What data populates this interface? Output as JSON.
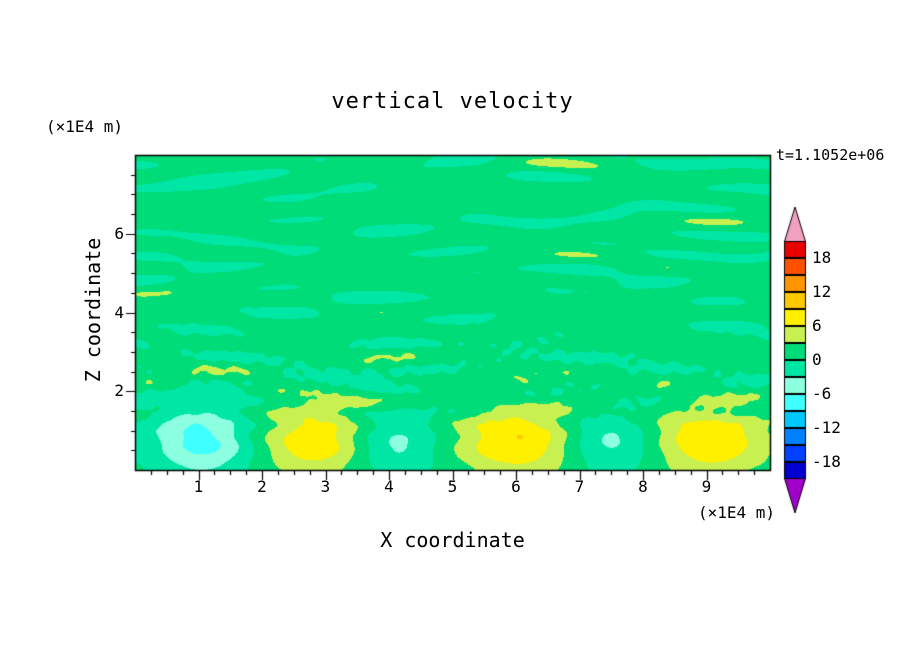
{
  "title": "vertical velocity",
  "timestamp": "t=1.1052e+06",
  "axes": {
    "x_label": "X coordinate",
    "x_unit": "(×1E4 m)",
    "y_label": "Z coordinate",
    "y_unit": "(×1E4 m)",
    "x_ticks": [
      1,
      2,
      3,
      4,
      5,
      6,
      7,
      8,
      9
    ],
    "y_ticks": [
      2,
      4,
      6
    ]
  },
  "colorbar": {
    "labels": [
      "18",
      "12",
      "6",
      "0",
      "-6",
      "-12",
      "-18"
    ]
  },
  "chart_data": {
    "type": "heatmap",
    "title": "vertical velocity",
    "xlabel": "X coordinate (×1E4 m)",
    "ylabel": "Z coordinate (×1E4 m)",
    "time_label": "t=1.1052e+06",
    "x_range": [
      0,
      10
    ],
    "z_range": [
      0,
      8
    ],
    "contour_interval": 3,
    "levels": [
      -21,
      -18,
      -15,
      -12,
      -9,
      -6,
      -3,
      0,
      3,
      6,
      9,
      12,
      15,
      18,
      21
    ],
    "palette_low_to_high": [
      "#A000C8",
      "#0000D2",
      "#0040FF",
      "#0082FF",
      "#00C8FF",
      "#40FFFF",
      "#8CFFE1",
      "#00E6A5",
      "#00DC78",
      "#C8F050",
      "#FFF000",
      "#FFC800",
      "#FF9600",
      "#FF5000",
      "#E80000",
      "#F2A0C0"
    ],
    "background": {
      "mean": 0.8,
      "fluctuation": 1.5
    },
    "cells": [
      {
        "x": 1.05,
        "amplitude": -8.2,
        "sx": 0.55,
        "sz": 0.6,
        "zc": 0.75
      },
      {
        "x": 2.85,
        "amplitude": 7.8,
        "sx": 0.62,
        "sz": 0.6,
        "zc": 0.75
      },
      {
        "x": 4.05,
        "amplitude": -5.2,
        "sx": 0.5,
        "sz": 0.55,
        "zc": 0.7
      },
      {
        "x": 6.0,
        "amplitude": 8.2,
        "sx": 0.66,
        "sz": 0.62,
        "zc": 0.75
      },
      {
        "x": 7.45,
        "amplitude": -4.8,
        "sx": 0.5,
        "sz": 0.55,
        "zc": 0.7
      },
      {
        "x": 9.05,
        "amplitude": 8.0,
        "sx": 0.62,
        "sz": 0.6,
        "zc": 0.75
      }
    ],
    "legend_position": "right",
    "grid": false
  }
}
